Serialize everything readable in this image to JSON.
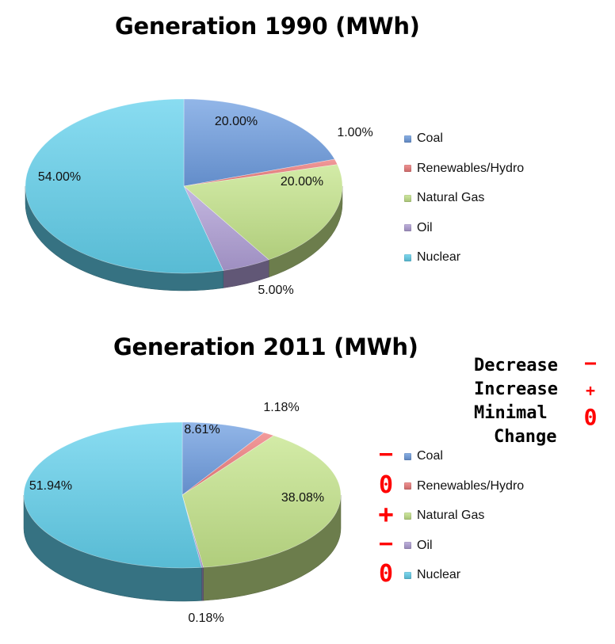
{
  "chart_data": [
    {
      "type": "pie",
      "title": "Generation 1990 (MWh)",
      "categories": [
        "Coal",
        "Renewables/Hydro",
        "Natural Gas",
        "Oil",
        "Nuclear"
      ],
      "values": [
        20.0,
        1.0,
        20.0,
        5.0,
        54.0
      ],
      "labels": [
        "20.00%",
        "1.00%",
        "20.00%",
        "5.00%",
        "54.00%"
      ],
      "legend_placement": "right"
    },
    {
      "type": "pie",
      "title": "Generation 2011 (MWh)",
      "categories": [
        "Coal",
        "Renewables/Hydro",
        "Natural Gas",
        "Oil",
        "Nuclear"
      ],
      "values": [
        8.61,
        1.18,
        38.08,
        0.18,
        51.94
      ],
      "labels": [
        "8.61%",
        "1.18%",
        "38.08%",
        "0.18%",
        "51.94%"
      ],
      "legend_placement": "right",
      "change_markers": [
        "−",
        "0",
        "+",
        "−",
        "0"
      ]
    }
  ],
  "colors": {
    "Coal": "#6e9de0",
    "Renewables/Hydro": "#ee7a7a",
    "Natural Gas": "#c4e48a",
    "Oil": "#b09fd6",
    "Nuclear": "#62d0ec",
    "marker": "#ff0000"
  },
  "key": {
    "decrease": {
      "label": "Decrease",
      "symbol": "−"
    },
    "increase": {
      "label": "Increase",
      "symbol": "+"
    },
    "minimal": {
      "label_line1": "Minimal",
      "label_line2": "Change",
      "symbol": "0"
    }
  }
}
